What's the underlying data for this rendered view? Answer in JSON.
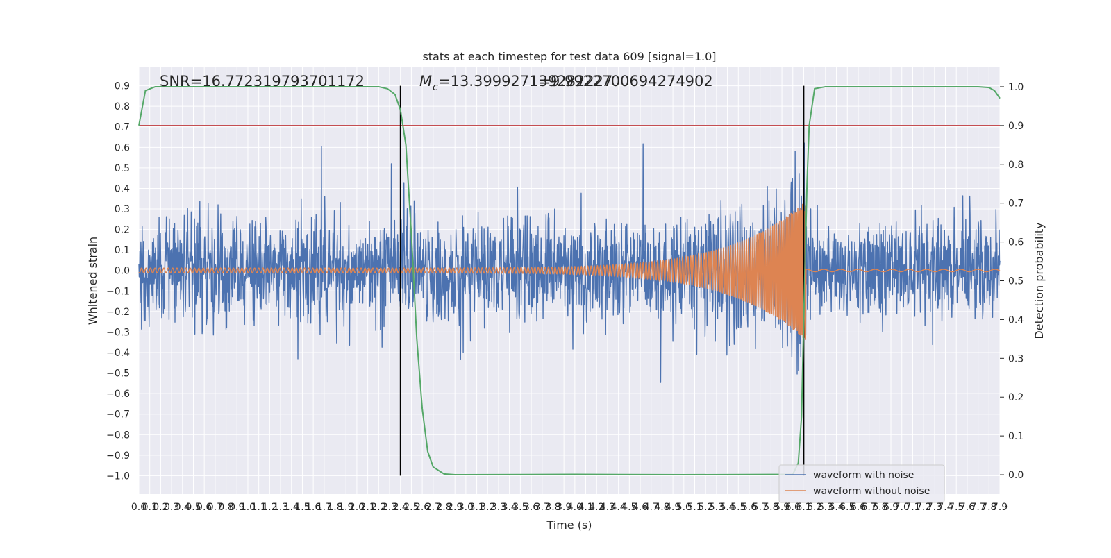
{
  "chart_data": {
    "type": "line",
    "title": "stats at each timestep for test data 609 [signal=1.0]",
    "xlabel": "Time (s)",
    "ylabel": "Whitened strain",
    "y2label": "Detection probability",
    "xlim": [
      0.0,
      7.9
    ],
    "ylim": [
      -1.09,
      0.99
    ],
    "y2lim": [
      -0.05,
      1.05
    ],
    "x_ticks": [
      "0.0",
      "0.1",
      "0.2",
      "0.3",
      "0.4",
      "0.5",
      "0.6",
      "0.7",
      "0.8",
      "0.9",
      "1.0",
      "1.1",
      "1.2",
      "1.3",
      "1.4",
      "1.5",
      "1.6",
      "1.7",
      "1.8",
      "1.9",
      "2.0",
      "2.1",
      "2.2",
      "2.3",
      "2.4",
      "2.5",
      "2.6",
      "2.7",
      "2.8",
      "2.9",
      "3.0",
      "3.1",
      "3.2",
      "3.3",
      "3.4",
      "3.5",
      "3.6",
      "3.7",
      "3.8",
      "3.9",
      "4.0",
      "4.1",
      "4.2",
      "4.3",
      "4.4",
      "4.5",
      "4.6",
      "4.7",
      "4.8",
      "4.9",
      "5.0",
      "5.1",
      "5.2",
      "5.3",
      "5.4",
      "5.5",
      "5.6",
      "5.7",
      "5.8",
      "5.9",
      "6.0",
      "6.1",
      "6.2",
      "6.3",
      "6.4",
      "6.5",
      "6.6",
      "6.7",
      "6.8",
      "6.9",
      "7.0",
      "7.1",
      "7.2",
      "7.3",
      "7.4",
      "7.5",
      "7.6",
      "7.7",
      "7.8",
      "7.9"
    ],
    "y_ticks": [
      "0.9",
      "0.8",
      "0.7",
      "0.6",
      "0.5",
      "0.4",
      "0.3",
      "0.2",
      "0.1",
      "0.0",
      "−0.1",
      "−0.2",
      "−0.3",
      "−0.4",
      "−0.5",
      "−0.6",
      "−0.7",
      "−0.8",
      "−0.9",
      "−1.0"
    ],
    "y2_ticks": [
      "1.0",
      "0.9",
      "0.8",
      "0.7",
      "0.6",
      "0.5",
      "0.4",
      "0.3",
      "0.2",
      "0.1",
      "0.0"
    ],
    "series": [
      {
        "name": "waveform with noise",
        "color": "#4c72b0"
      },
      {
        "name": "waveform without noise",
        "color": "#dd8452"
      }
    ],
    "detection_probability": {
      "color": "#55a868",
      "x": [
        0.0,
        0.06,
        0.15,
        0.3,
        2.2,
        2.28,
        2.35,
        2.4,
        2.45,
        2.5,
        2.55,
        2.6,
        2.65,
        2.7,
        2.8,
        2.9,
        3.0,
        4.0,
        5.0,
        6.0,
        6.05,
        6.08,
        6.1,
        6.13,
        6.15,
        6.2,
        6.3,
        7.7,
        7.8,
        7.85,
        7.9
      ],
      "y": [
        0.9,
        0.99,
        1.0,
        1.0,
        1.0,
        0.995,
        0.98,
        0.94,
        0.85,
        0.62,
        0.35,
        0.17,
        0.06,
        0.02,
        0.002,
        0.0,
        0.0,
        0.001,
        0.0,
        0.001,
        0.03,
        0.15,
        0.4,
        0.75,
        0.9,
        0.995,
        1.0,
        1.0,
        0.998,
        0.99,
        0.97
      ]
    },
    "threshold": {
      "y2": 0.9,
      "color": "#c44e52"
    },
    "event_markers_x": [
      2.4,
      6.1
    ],
    "annotations": [
      {
        "key": "snr",
        "text": "SNR=16.772319793701172"
      },
      {
        "key": "mc_prefix",
        "text": "M"
      },
      {
        "key": "mc_sub",
        "text": "c"
      },
      {
        "key": "mc_value",
        "text": "=13.399927139282227"
      },
      {
        "key": "overlap",
        "text": "1=9.9922700694274902"
      }
    ],
    "legend_position": "lower-right",
    "grid": true
  }
}
